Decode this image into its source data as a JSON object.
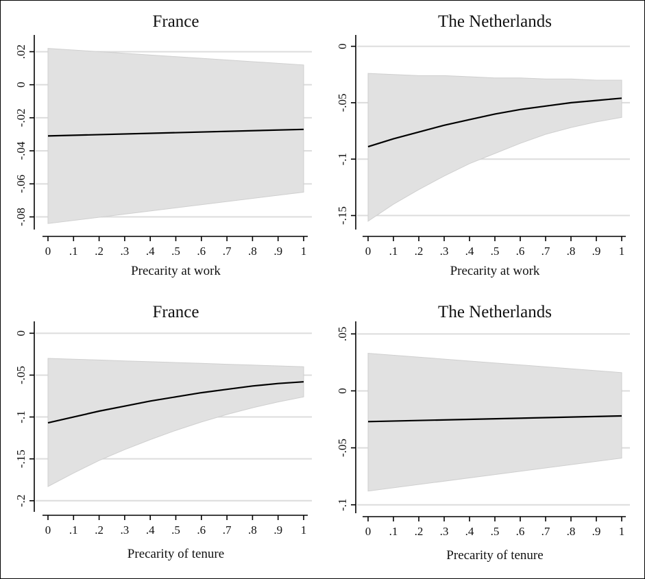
{
  "chart_data": [
    {
      "type": "line",
      "title": "France",
      "xlabel": "Precarity at work",
      "ylabel": "",
      "x_ticks": [
        "0",
        ".1",
        ".2",
        ".3",
        ".4",
        ".5",
        ".6",
        ".7",
        ".8",
        ".9",
        "1"
      ],
      "y_ticks": [
        0.02,
        0,
        -0.02,
        -0.04,
        -0.06,
        -0.08
      ],
      "y_tick_labels": [
        ".02",
        "0",
        "-.02",
        "-.04",
        "-.06",
        "-.08"
      ],
      "xlim": [
        0,
        1
      ],
      "ylim": [
        -0.086,
        0.026
      ],
      "grid": true,
      "series": [
        {
          "x": [
            0,
            1
          ],
          "y": [
            -0.031,
            -0.027
          ],
          "lower": [
            -0.084,
            -0.065
          ],
          "upper": [
            0.022,
            0.012
          ]
        }
      ]
    },
    {
      "type": "line",
      "title": "The Netherlands",
      "xlabel": "Precarity at work",
      "ylabel": "",
      "x_ticks": [
        "0",
        ".1",
        ".2",
        ".3",
        ".4",
        ".5",
        ".6",
        ".7",
        ".8",
        ".9",
        "1"
      ],
      "y_ticks": [
        0,
        -0.05,
        -0.1,
        -0.15
      ],
      "y_tick_labels": [
        "0",
        "-.05",
        "-.1",
        "-.15"
      ],
      "xlim": [
        0,
        1
      ],
      "ylim": [
        -0.16,
        0.004
      ],
      "grid": true,
      "series": [
        {
          "x": [
            0,
            0.1,
            0.2,
            0.3,
            0.4,
            0.5,
            0.6,
            0.7,
            0.8,
            0.9,
            1
          ],
          "y": [
            -0.089,
            -0.082,
            -0.076,
            -0.07,
            -0.065,
            -0.06,
            -0.056,
            -0.053,
            -0.05,
            -0.048,
            -0.046
          ],
          "lower": [
            -0.155,
            -0.14,
            -0.127,
            -0.115,
            -0.104,
            -0.095,
            -0.086,
            -0.078,
            -0.072,
            -0.067,
            -0.063
          ],
          "upper": [
            -0.024,
            -0.025,
            -0.026,
            -0.026,
            -0.027,
            -0.028,
            -0.028,
            -0.029,
            -0.029,
            -0.03,
            -0.03
          ]
        }
      ]
    },
    {
      "type": "line",
      "title": "France",
      "xlabel": "Precarity of tenure",
      "ylabel": "",
      "x_ticks": [
        "0",
        ".1",
        ".2",
        ".3",
        ".4",
        ".5",
        ".6",
        ".7",
        ".8",
        ".9",
        "1"
      ],
      "y_ticks": [
        0,
        -0.05,
        -0.1,
        -0.15,
        -0.2
      ],
      "y_tick_labels": [
        "0",
        "-.05",
        "-.1",
        "-.15",
        "-.2"
      ],
      "xlim": [
        0,
        1
      ],
      "ylim": [
        -0.21,
        0.006
      ],
      "grid": true,
      "series": [
        {
          "x": [
            0,
            0.1,
            0.2,
            0.3,
            0.4,
            0.5,
            0.6,
            0.7,
            0.8,
            0.9,
            1
          ],
          "y": [
            -0.107,
            -0.1,
            -0.093,
            -0.087,
            -0.081,
            -0.076,
            -0.071,
            -0.067,
            -0.063,
            -0.06,
            -0.058
          ],
          "lower": [
            -0.183,
            -0.167,
            -0.152,
            -0.139,
            -0.127,
            -0.116,
            -0.106,
            -0.097,
            -0.089,
            -0.082,
            -0.076
          ],
          "upper": [
            -0.03,
            -0.031,
            -0.032,
            -0.033,
            -0.034,
            -0.035,
            -0.036,
            -0.037,
            -0.038,
            -0.039,
            -0.04
          ]
        }
      ]
    },
    {
      "type": "line",
      "title": "The Netherlands",
      "xlabel": "Precarity of tenure",
      "ylabel": "",
      "x_ticks": [
        "0",
        ".1",
        ".2",
        ".3",
        ".4",
        ".5",
        ".6",
        ".7",
        ".8",
        ".9",
        "1"
      ],
      "y_ticks": [
        0.05,
        0,
        -0.05,
        -0.1
      ],
      "y_tick_labels": [
        ".05",
        "0",
        "-.05",
        "-.1"
      ],
      "xlim": [
        0,
        1
      ],
      "ylim": [
        -0.105,
        0.055
      ],
      "grid": true,
      "series": [
        {
          "x": [
            0,
            1
          ],
          "y": [
            -0.027,
            -0.022
          ],
          "lower": [
            -0.088,
            -0.059
          ],
          "upper": [
            0.033,
            0.016
          ]
        }
      ]
    }
  ]
}
